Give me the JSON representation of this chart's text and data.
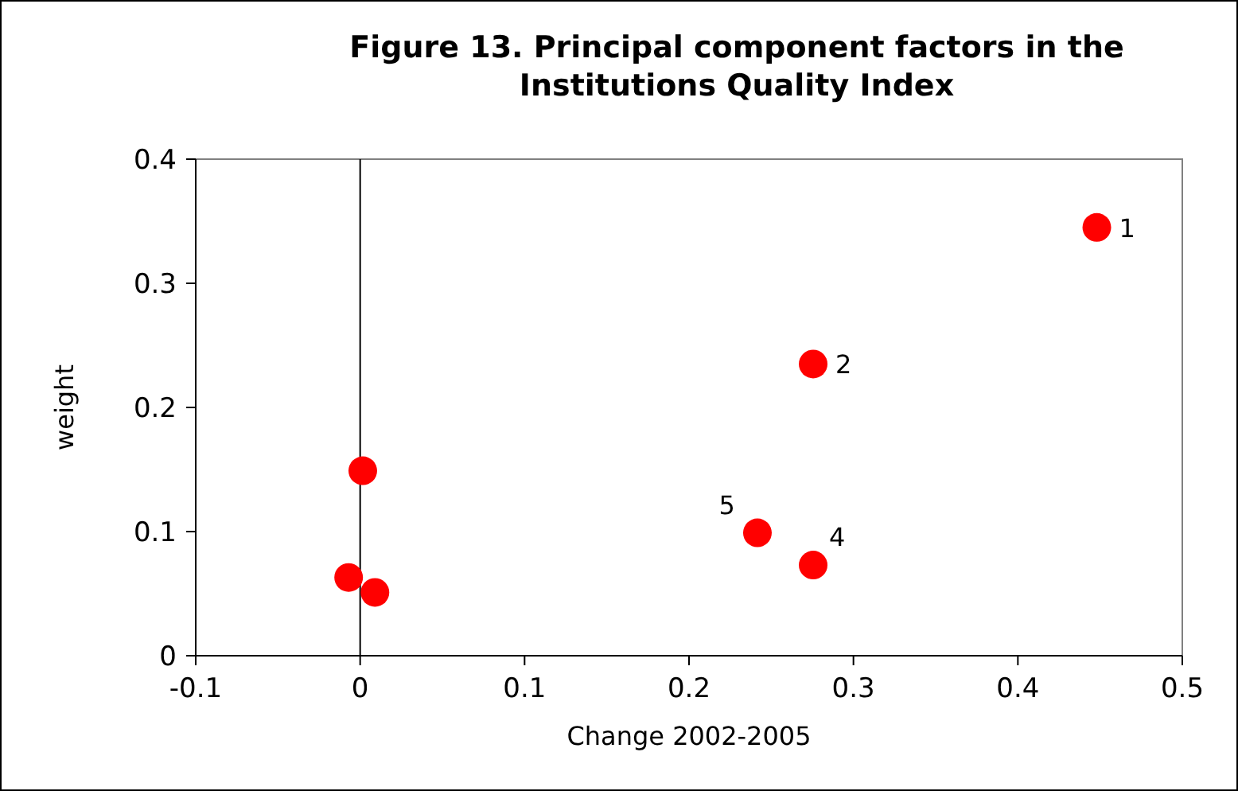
{
  "chart_data": {
    "type": "scatter",
    "title": "Figure 13. Principal component factors in the Institutions Quality Index",
    "xlabel": "Change 2002-2005",
    "ylabel": "weight",
    "series": [
      {
        "color": "#ff0000",
        "x": [
          0.448,
          0.2755,
          0.2416,
          0.2755,
          0.0016,
          -0.007,
          0.009
        ],
        "values": [
          0.345,
          0.235,
          0.099,
          0.073,
          0.149,
          0.063,
          0.051
        ]
      }
    ],
    "annotations": [
      {
        "text": "1",
        "x": 0.448,
        "y": 0.345
      },
      {
        "text": "2",
        "x": 0.2755,
        "y": 0.235
      },
      {
        "text": "5",
        "x": 0.2416,
        "y": 0.099
      },
      {
        "text": "4",
        "x": 0.2755,
        "y": 0.073
      }
    ],
    "xlim": [
      -0.1,
      0.5
    ],
    "xticks": [
      -0.1,
      0,
      0.1,
      0.2,
      0.3,
      0.4,
      0.5
    ],
    "ylim": [
      0,
      0.4
    ],
    "yticks": [
      0,
      0.1,
      0.2,
      0.3,
      0.4
    ],
    "ref_lines": [
      {
        "axis": "x",
        "value": 0,
        "color": "#000000"
      }
    ],
    "marker": "circle",
    "grid": false
  }
}
